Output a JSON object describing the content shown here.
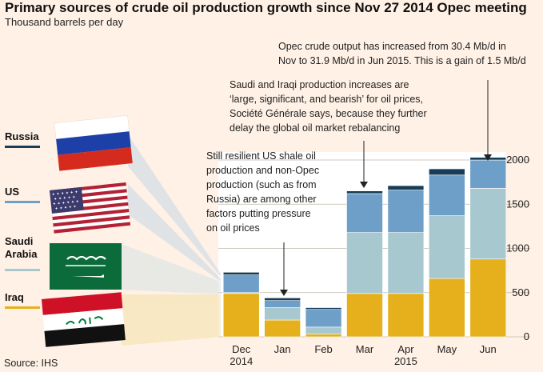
{
  "chart_data": {
    "type": "bar",
    "stacked": true,
    "title": "Primary sources of crude oil production growth since Nov 27 2014 Opec meeting",
    "subtitle": "Thousand barrels per day",
    "categories": [
      "Dec\n2014",
      "Jan",
      "Feb",
      "Mar",
      "Apr\n2015",
      "May",
      "Jun"
    ],
    "series": [
      {
        "name": "Iraq",
        "color": "#e5b01c",
        "values": [
          490,
          190,
          30,
          490,
          490,
          660,
          880
        ]
      },
      {
        "name": "Saudi Arabia",
        "color": "#a8c8cf",
        "values": [
          10,
          140,
          80,
          690,
          690,
          710,
          800
        ]
      },
      {
        "name": "US",
        "color": "#6e9fc9",
        "values": [
          200,
          80,
          200,
          440,
          480,
          460,
          320
        ]
      },
      {
        "name": "Russia",
        "color": "#183d59",
        "values": [
          30,
          30,
          20,
          30,
          50,
          70,
          30
        ]
      }
    ],
    "ylim": [
      0,
      2000
    ],
    "yticks": [
      0,
      500,
      1000,
      1500,
      2000
    ],
    "grid": true,
    "legend_placement": "left",
    "xlabel": "",
    "ylabel": ""
  },
  "source": "Source: IHS",
  "legend_icons": [
    "russia-flag",
    "us-flag",
    "saudi-arabia-flag",
    "iraq-flag"
  ],
  "annotations": [
    {
      "lines": [
        "Opec crude output has increased from 30.4 Mb/d in",
        "Nov to 31.9 Mb/d in Jun 2015. This is a gain of 1.5 Mb/d"
      ]
    },
    {
      "lines": [
        "Saudi and Iraqi production increases are",
        "‘large, significant, and bearish’ for oil prices,",
        "Société Générale says, because they further",
        "delay the global oil market rebalancing"
      ]
    },
    {
      "lines": [
        "Still resilient US shale oil",
        "production and non-Opec",
        "production (such as from",
        "Russia) are among other",
        "factors putting pressure",
        "on oil prices"
      ]
    }
  ]
}
